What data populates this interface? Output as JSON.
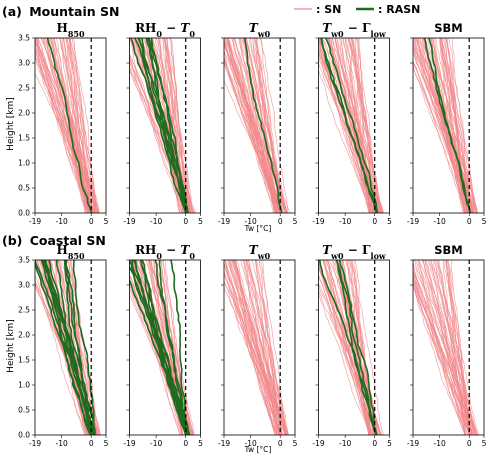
{
  "legend": {
    "items": [
      {
        "label": ": SN",
        "color": "#f2878a"
      },
      {
        "label": ": RASN",
        "color": "#1f6b1f"
      }
    ]
  },
  "panels": [
    {
      "letter": "(a)",
      "title": "Mountain SN"
    },
    {
      "letter": "(b)",
      "title": "Coastal SN"
    }
  ],
  "subplots": {
    "titles": [
      "H850",
      "RH0 − T0",
      "Tw0",
      "Tw0 − Γlow",
      "SBM"
    ]
  },
  "axes": {
    "ylabel": "Height [km]",
    "xlabel": "Tw [°C]",
    "xticks": [
      "-19",
      "-10",
      "0",
      "5"
    ],
    "yticks": [
      "0.0",
      "0.5",
      "1.0",
      "1.5",
      "2.0",
      "2.5",
      "3.0",
      "3.5"
    ]
  },
  "chart_data": [
    {
      "type": "line",
      "panel": "(a) Mountain SN",
      "subplots": [
        "H850",
        "RH0 − T0",
        "Tw0",
        "Tw0 − Γlow",
        "SBM"
      ],
      "xlabel": "Tw [°C]",
      "ylabel": "Height [km]",
      "xlim": [
        -19,
        5
      ],
      "ylim": [
        0,
        3.5
      ],
      "reference_line": {
        "x": 0,
        "style": "dashed"
      },
      "series": [
        {
          "name": "SN",
          "color": "#f2878a",
          "approx_profiles": 60,
          "surface_tw_range": [
            -2,
            3
          ],
          "tw_at_3km_range": [
            -19,
            -5
          ]
        },
        {
          "name": "RASN",
          "color": "#1f6b1f",
          "approx_profiles": 9,
          "surface_tw_range": [
            0,
            1
          ],
          "tw_at_3km_range": [
            -16,
            -10
          ]
        }
      ],
      "subplot_rasn_counts": [
        1,
        9,
        1,
        3,
        2
      ]
    },
    {
      "type": "line",
      "panel": "(b) Coastal SN",
      "subplots": [
        "H850",
        "RH0 − T0",
        "Tw0",
        "Tw0 − Γlow",
        "SBM"
      ],
      "xlabel": "Tw [°C]",
      "ylabel": "Height [km]",
      "xlim": [
        -19,
        5
      ],
      "ylim": [
        0,
        3.5
      ],
      "reference_line": {
        "x": 0,
        "style": "dashed"
      },
      "series": [
        {
          "name": "SN",
          "color": "#f2878a",
          "approx_profiles": 50,
          "surface_tw_range": [
            -2,
            3
          ],
          "tw_at_3km_range": [
            -19,
            -6
          ]
        },
        {
          "name": "RASN",
          "color": "#1f6b1f",
          "approx_profiles": 14,
          "surface_tw_range": [
            0,
            1
          ],
          "tw_at_3km_range": [
            -18,
            -6
          ]
        }
      ],
      "subplot_rasn_counts": [
        14,
        12,
        0,
        4,
        0
      ]
    }
  ]
}
